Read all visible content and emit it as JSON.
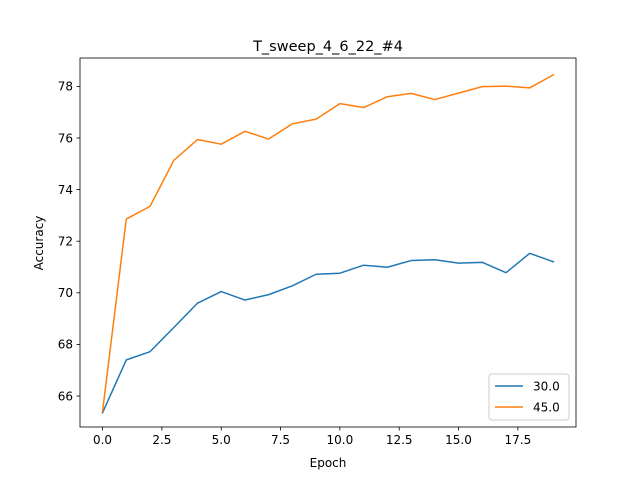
{
  "chart_data": {
    "type": "line",
    "title": "T_sweep_4_6_22_#4",
    "xlabel": "Epoch",
    "ylabel": "Accuracy",
    "xlim": [
      -0.95,
      19.95
    ],
    "ylim": [
      64.8,
      79.1
    ],
    "xticks": [
      0.0,
      2.5,
      5.0,
      7.5,
      10.0,
      12.5,
      15.0,
      17.5
    ],
    "xtick_labels": [
      "0.0",
      "2.5",
      "5.0",
      "7.5",
      "10.0",
      "12.5",
      "15.0",
      "17.5"
    ],
    "yticks": [
      66,
      68,
      70,
      72,
      74,
      76,
      78
    ],
    "ytick_labels": [
      "66",
      "68",
      "70",
      "72",
      "74",
      "76",
      "78"
    ],
    "grid": false,
    "legend_position": "lower-right",
    "x": [
      0,
      1,
      2,
      3,
      4,
      5,
      6,
      7,
      8,
      9,
      10,
      11,
      12,
      13,
      14,
      15,
      16,
      17,
      18,
      19
    ],
    "series": [
      {
        "name": "30.0",
        "color": "#1f77b4",
        "values": [
          65.35,
          67.4,
          67.72,
          68.65,
          69.6,
          70.05,
          69.72,
          69.93,
          70.27,
          70.72,
          70.76,
          71.07,
          70.99,
          71.25,
          71.28,
          71.15,
          71.18,
          70.78,
          71.53,
          71.2
        ]
      },
      {
        "name": "45.0",
        "color": "#ff7f0e",
        "values": [
          65.4,
          72.86,
          73.35,
          75.13,
          75.94,
          75.76,
          76.26,
          75.96,
          76.55,
          76.73,
          77.33,
          77.18,
          77.6,
          77.73,
          77.49,
          77.74,
          77.99,
          78.01,
          77.94,
          78.45
        ]
      }
    ]
  }
}
